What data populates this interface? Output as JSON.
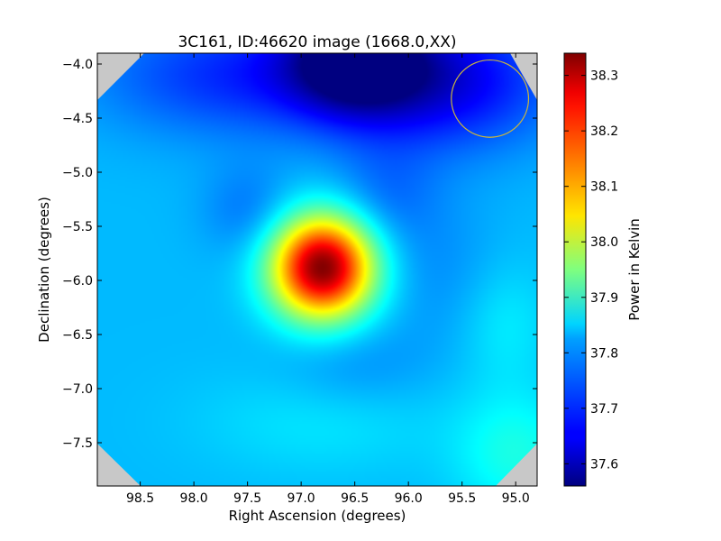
{
  "chart_data": {
    "type": "heatmap",
    "title": "3C161, ID:46620 image (1668.0,XX)",
    "xlabel": "Right Ascension (degrees)",
    "ylabel": "Declination (degrees)",
    "colorbar_label": "Power in Kelvin",
    "colormap": "jet",
    "x_inverted": true,
    "xlim": [
      98.9,
      94.8
    ],
    "ylim": [
      -7.9,
      -3.9
    ],
    "xticks": [
      98.5,
      98.0,
      97.5,
      97.0,
      96.5,
      96.0,
      95.5,
      95.0
    ],
    "xtick_labels": [
      "98.5",
      "98.0",
      "97.5",
      "97.0",
      "96.5",
      "96.0",
      "95.5",
      "95.0"
    ],
    "yticks": [
      -4.0,
      -4.5,
      -5.0,
      -5.5,
      -6.0,
      -6.5,
      -7.0,
      -7.5
    ],
    "ytick_labels": [
      "−4.0",
      "−4.5",
      "−5.0",
      "−5.5",
      "−6.0",
      "−6.5",
      "−7.0",
      "−7.5"
    ],
    "clim": [
      37.56,
      38.34
    ],
    "colorbar_ticks": [
      37.6,
      37.7,
      37.8,
      37.9,
      38.0,
      38.1,
      38.2,
      38.3
    ],
    "colorbar_tick_labels": [
      "37.6",
      "37.7",
      "37.8",
      "37.9",
      "38.0",
      "38.1",
      "38.2",
      "38.3"
    ],
    "background_level": 37.8,
    "components": [
      {
        "ra": 96.8,
        "dec": -5.88,
        "amp": 0.54,
        "sigma_ra": 0.33,
        "sigma_dec": 0.33
      },
      {
        "ra": 96.5,
        "dec": -3.95,
        "amp": -0.22,
        "sigma_ra": 0.45,
        "sigma_dec": 0.35
      },
      {
        "ra": 95.7,
        "dec": -4.15,
        "amp": -0.16,
        "sigma_ra": 0.75,
        "sigma_dec": 0.45
      },
      {
        "ra": 97.6,
        "dec": -4.1,
        "amp": -0.11,
        "sigma_ra": 0.9,
        "sigma_dec": 0.4
      },
      {
        "ra": 97.5,
        "dec": -5.35,
        "amp": -0.05,
        "sigma_ra": 0.3,
        "sigma_dec": 0.3
      },
      {
        "ra": 96.2,
        "dec": -5.2,
        "amp": -0.05,
        "sigma_ra": 0.35,
        "sigma_dec": 0.35
      },
      {
        "ra": 96.5,
        "dec": -6.8,
        "amp": -0.035,
        "sigma_ra": 0.5,
        "sigma_dec": 0.3
      },
      {
        "ra": 95.7,
        "dec": -5.9,
        "amp": -0.03,
        "sigma_ra": 0.4,
        "sigma_dec": 0.5
      },
      {
        "ra": 95.1,
        "dec": -6.4,
        "amp": 0.04,
        "sigma_ra": 0.3,
        "sigma_dec": 0.4
      },
      {
        "ra": 96.8,
        "dec": -7.3,
        "amp": 0.035,
        "sigma_ra": 0.8,
        "sigma_dec": 0.35
      },
      {
        "ra": 95.0,
        "dec": -7.6,
        "amp": 0.07,
        "sigma_ra": 0.4,
        "sigma_dec": 0.4
      }
    ],
    "beam_circle": {
      "ra": 95.24,
      "dec": -4.32,
      "radius_deg": 0.36,
      "color": "#c8b440"
    },
    "corner_cut_color": "#c8c8c8"
  }
}
